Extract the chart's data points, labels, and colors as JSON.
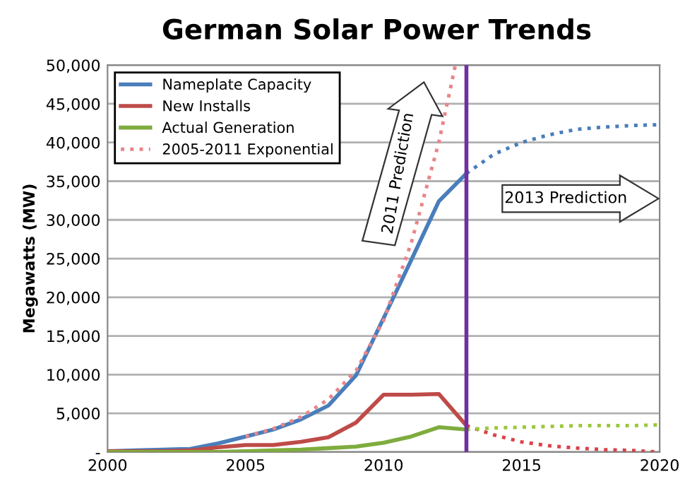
{
  "chart_data": {
    "type": "line",
    "title": "German Solar Power Trends",
    "ylabel": "Megawatts (MW)",
    "xlim": [
      2000,
      2020
    ],
    "xticks": [
      2000,
      2005,
      2010,
      2015,
      2020
    ],
    "ylim": [
      0,
      50000
    ],
    "yticks": [
      {
        "value": 0,
        "label": "-"
      },
      {
        "value": 5000,
        "label": "5,000"
      },
      {
        "value": 10000,
        "label": "10,000"
      },
      {
        "value": 15000,
        "label": "15,000"
      },
      {
        "value": 20000,
        "label": "20,000"
      },
      {
        "value": 25000,
        "label": "25,000"
      },
      {
        "value": 30000,
        "label": "30,000"
      },
      {
        "value": 35000,
        "label": "35,000"
      },
      {
        "value": 40000,
        "label": "40,000"
      },
      {
        "value": 45000,
        "label": "45,000"
      },
      {
        "value": 50000,
        "label": "50,000"
      }
    ],
    "grid": "y",
    "legend": "top left",
    "marker": "none",
    "series": [
      {
        "name": "Nameplate Capacity",
        "color": "#4a7ebb",
        "line_style": "solid",
        "x": [
          2000,
          2001,
          2002,
          2003,
          2004,
          2005,
          2006,
          2007,
          2008,
          2009,
          2010,
          2011,
          2012,
          2013
        ],
        "values": [
          100,
          200,
          300,
          400,
          1100,
          2000,
          2900,
          4200,
          6000,
          9900,
          17300,
          24800,
          32400,
          36000
        ]
      },
      {
        "name": "New Installs",
        "color": "#be4b48",
        "line_style": "solid",
        "x": [
          2000,
          2001,
          2002,
          2003,
          2004,
          2005,
          2006,
          2007,
          2008,
          2009,
          2010,
          2011,
          2012,
          2013
        ],
        "values": [
          100,
          100,
          100,
          200,
          600,
          900,
          900,
          1300,
          1900,
          3800,
          7400,
          7400,
          7500,
          3400
        ]
      },
      {
        "name": "Actual Generation",
        "color": "#7eac3e",
        "line_style": "solid",
        "x": [
          2000,
          2001,
          2002,
          2003,
          2004,
          2005,
          2006,
          2007,
          2008,
          2009,
          2010,
          2011,
          2012,
          2013
        ],
        "values": [
          0,
          0,
          0,
          0,
          0,
          100,
          200,
          300,
          500,
          700,
          1200,
          2000,
          3200,
          2900
        ]
      },
      {
        "name": "2005-2011 Exponential",
        "color": "#e8868a",
        "line_style": "dotted",
        "x": [
          2005,
          2006,
          2007,
          2008,
          2009,
          2010,
          2011,
          2012,
          2012.6
        ],
        "values": [
          2000,
          3000,
          4500,
          6800,
          10500,
          17000,
          27000,
          40000,
          50000
        ]
      },
      {
        "color": "#4a7ebb",
        "line_style": "dotted",
        "x": [
          2013,
          2014,
          2015,
          2016,
          2017,
          2018,
          2019,
          2020
        ],
        "values": [
          36000,
          38500,
          40000,
          41000,
          41700,
          42000,
          42200,
          42300
        ]
      },
      {
        "color": "#d9434a",
        "line_style": "dotted",
        "x": [
          2013,
          2014,
          2015,
          2016,
          2017,
          2018,
          2019,
          2020
        ],
        "values": [
          3400,
          2200,
          1300,
          800,
          500,
          300,
          200,
          0
        ]
      },
      {
        "color": "#9bc83c",
        "line_style": "dotted",
        "x": [
          2013,
          2014,
          2015,
          2016,
          2017,
          2018,
          2019,
          2020
        ],
        "values": [
          2900,
          3100,
          3200,
          3300,
          3400,
          3400,
          3400,
          3500
        ]
      }
    ],
    "ref_lines": [
      {
        "axis": "x",
        "value": 2013,
        "color": "#7030a0",
        "line_style": "solid"
      }
    ],
    "annotations": [
      "2011 Prediction",
      "2013 Prediction"
    ]
  }
}
